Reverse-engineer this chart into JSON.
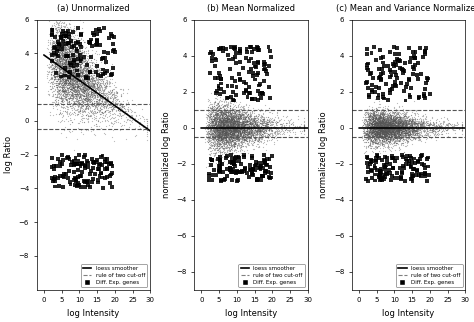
{
  "title_a": "(a) Unnormalized",
  "title_b": "(b) Mean Normalized",
  "title_c": "(c) Mean and Variance Normalized",
  "xlabel": "log Intensity",
  "ylabel_a": "log Ratio",
  "ylabel_bc": "normalized log Ratio",
  "xlim": [
    -2,
    30
  ],
  "xticks": [
    0,
    5,
    10,
    15,
    20,
    25,
    30
  ],
  "ylim_a": [
    -10,
    6
  ],
  "yticks_a": [
    -8,
    -6,
    -4,
    -2,
    0,
    2,
    4,
    6
  ],
  "ylim_bc": [
    -9,
    6
  ],
  "yticks_bc": [
    -8,
    -6,
    -4,
    -2,
    0,
    2,
    4,
    6
  ],
  "dashed_upper": 1.0,
  "dashed_lower": -0.5,
  "loess_color": "#000000",
  "dashed_color": "#555555",
  "scatter_color": "#555555",
  "diff_exp_color": "#000000",
  "n_points": 5000,
  "n_diff": 120,
  "seed": 42,
  "legend_items": [
    "loess smoother",
    "rule of two cut-off",
    "Diff. Exp. genes"
  ],
  "background_color": "#ffffff",
  "font_size": 6
}
